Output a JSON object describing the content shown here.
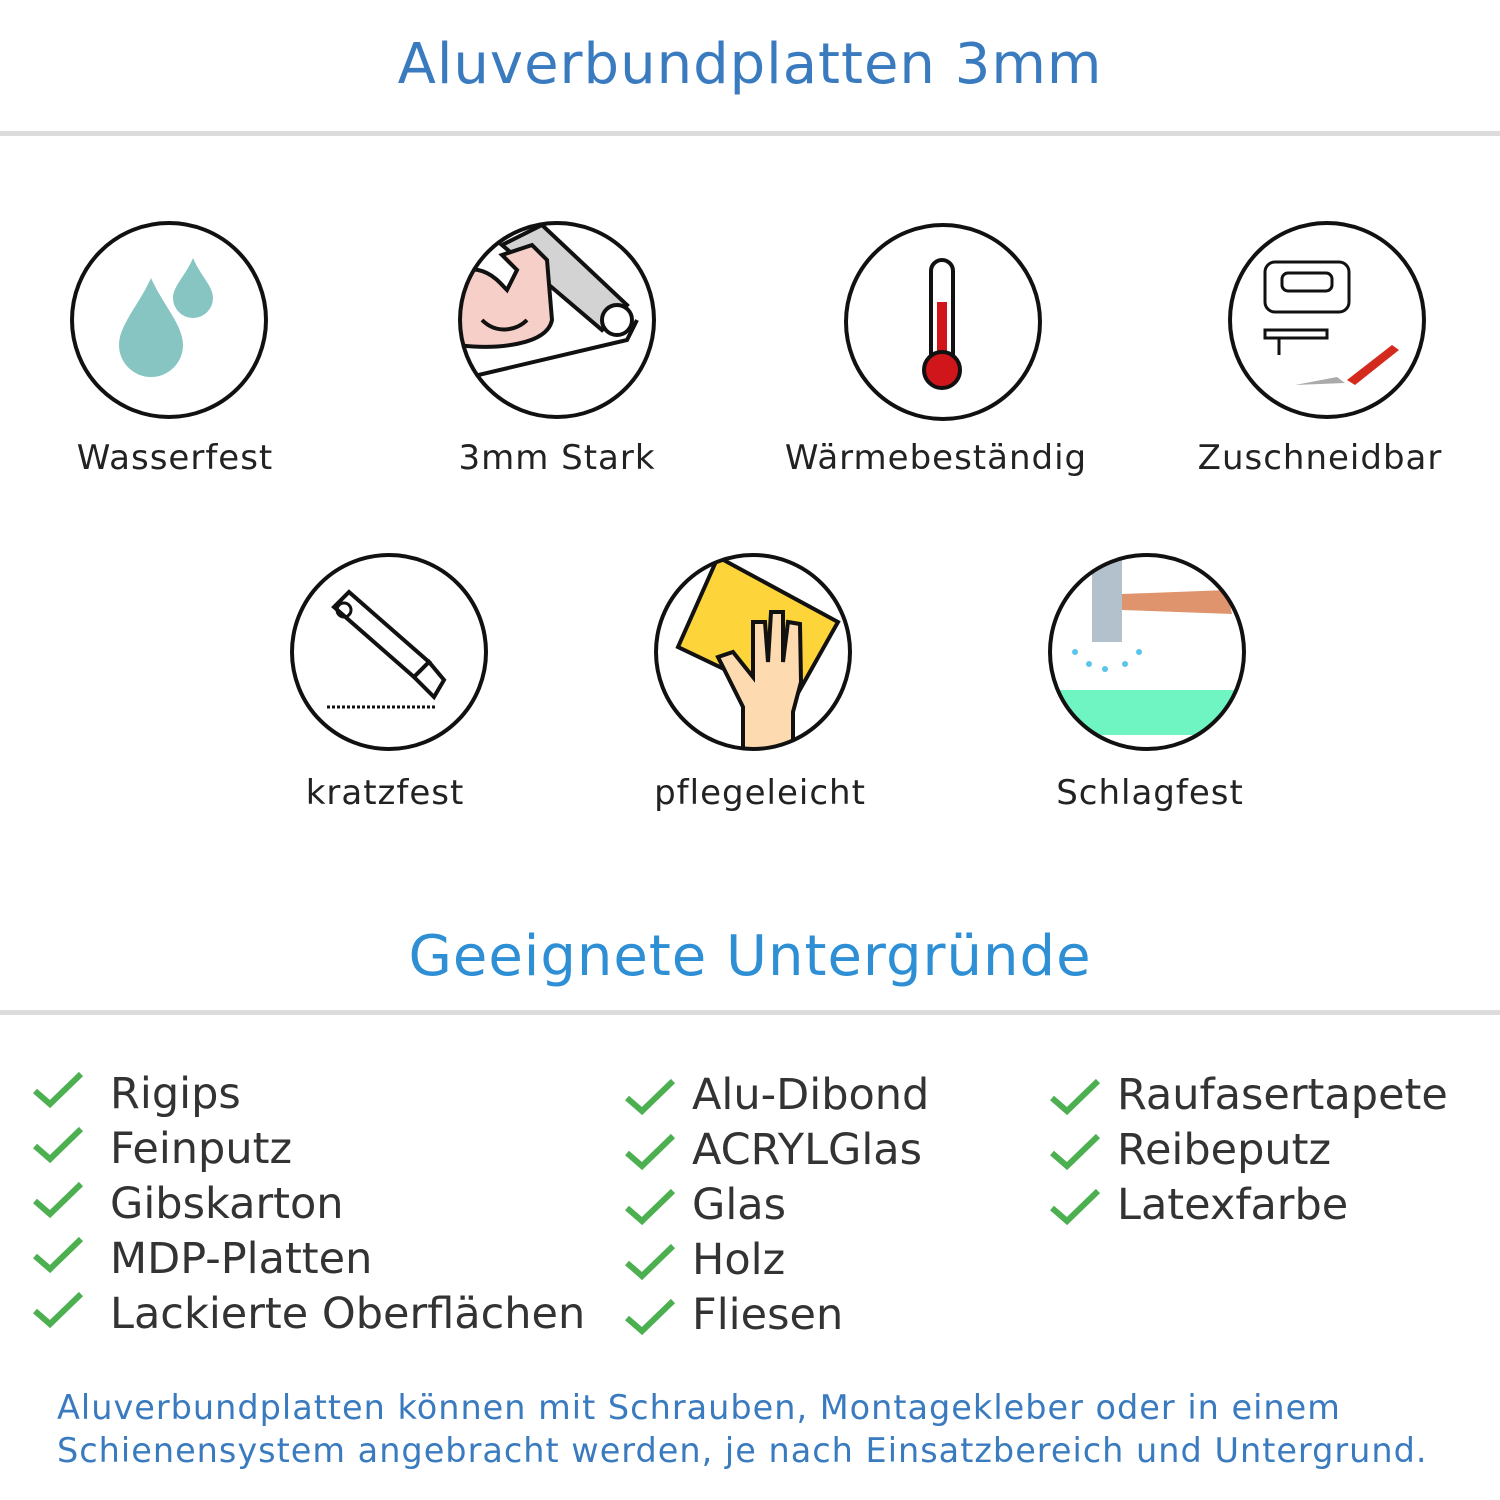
{
  "title": "Aluverbundplatten 3mm",
  "features": [
    {
      "label": "Wasserfest",
      "icon": "water-drops-icon"
    },
    {
      "label": "3mm Stark",
      "icon": "flexed-arm-icon"
    },
    {
      "label": "Wärmebeständig",
      "icon": "thermometer-icon"
    },
    {
      "label": "Zuschneidbar",
      "icon": "jigsaw-cutter-icon"
    },
    {
      "label": "kratzfest",
      "icon": "box-cutter-icon"
    },
    {
      "label": "pflegeleicht",
      "icon": "cleaning-cloth-hand-icon"
    },
    {
      "label": "Schlagfest",
      "icon": "hammer-icon"
    }
  ],
  "subtitle": "Geeignete Untergründe",
  "surfaces": {
    "col1": [
      "Rigips",
      "Feinputz",
      "Gibskarton",
      "MDP-Platten",
      "Lackierte Oberflächen"
    ],
    "col2": [
      "Alu-Dibond",
      "ACRYLGlas",
      "Glas",
      "Holz",
      "Fliesen"
    ],
    "col3": [
      "Raufasertapete",
      "Reibeputz",
      "Latexfarbe"
    ]
  },
  "footer": {
    "line1": "Aluverbundplatten können mit Schrauben, Montagekleber oder in einem",
    "line2": "Schienensystem angebracht werden, je nach Einsatzbereich und Untergrund."
  },
  "colors": {
    "title": "#3a7bbf",
    "check": "#4cb050",
    "text": "#333333"
  }
}
